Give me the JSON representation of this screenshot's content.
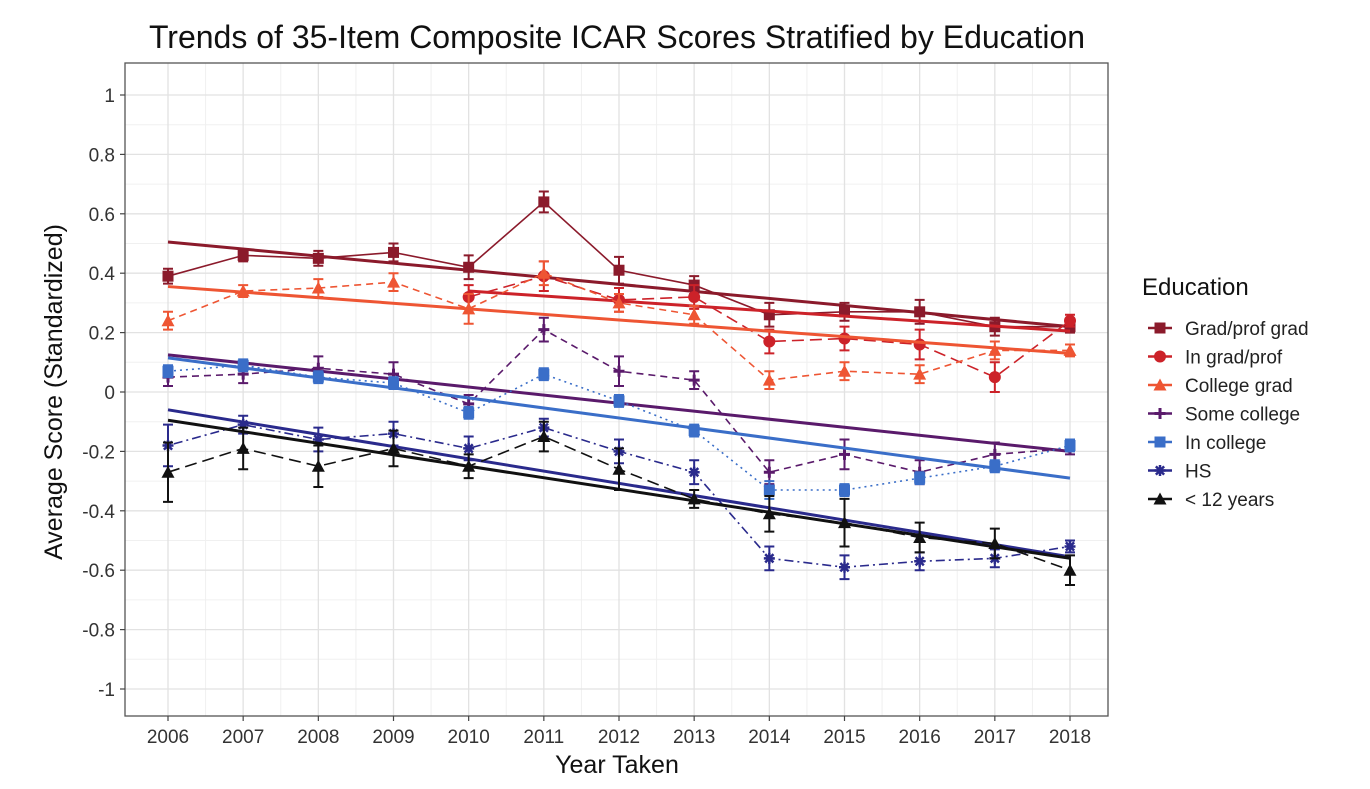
{
  "chart_data": {
    "type": "line",
    "title": "Trends of 35-Item Composite ICAR Scores Stratified by Education",
    "xlabel": "Year Taken",
    "ylabel": "Average Score (Standardized)",
    "ylim": [
      -1.1,
      1.1
    ],
    "y_ticks": [
      1,
      0.8,
      0.6,
      0.4,
      0.2,
      0,
      -0.2,
      -0.4,
      -0.6,
      -0.8,
      -1
    ],
    "y_tick_labels": [
      "1",
      "0.8",
      "0.6",
      "0.4",
      "0.2",
      "0",
      "-0.2",
      "-0.4",
      "-0.6",
      "-0.8",
      "-1"
    ],
    "x": [
      2006,
      2007,
      2008,
      2009,
      2010,
      2011,
      2012,
      2013,
      2014,
      2015,
      2016,
      2017,
      2018
    ],
    "x_tick_labels": [
      "2006",
      "2007",
      "2008",
      "2009",
      "2010",
      "2011",
      "2012",
      "2013",
      "2014",
      "2015",
      "2016",
      "2017",
      "2018"
    ],
    "grid": true,
    "legend_title": "Education",
    "legend_position": "right",
    "series": [
      {
        "name": "Grad/prof grad",
        "color": "#8b1a2b",
        "dash": "solid",
        "marker": "square",
        "values": [
          0.39,
          0.46,
          0.45,
          0.47,
          0.42,
          0.64,
          0.41,
          0.36,
          0.26,
          0.27,
          0.27,
          0.22,
          0.22
        ],
        "errors": [
          0.025,
          0.02,
          0.025,
          0.03,
          0.04,
          0.035,
          0.045,
          0.03,
          0.04,
          0.03,
          0.04,
          0.03,
          0.02
        ],
        "trend": [
          0.505,
          0.22
        ]
      },
      {
        "name": "In grad/prof",
        "color": "#cc2229",
        "dash": "longdash",
        "marker": "circle",
        "values": [
          null,
          null,
          null,
          null,
          0.32,
          0.39,
          0.31,
          0.32,
          0.17,
          0.18,
          0.16,
          0.05,
          0.24
        ],
        "errors": [
          null,
          null,
          null,
          null,
          0.04,
          0.05,
          0.04,
          0.04,
          0.04,
          0.04,
          0.05,
          0.05,
          0.02
        ],
        "trend": [
          0.34,
          0.205
        ]
      },
      {
        "name": "College grad",
        "color": "#ee5533",
        "dash": "dashed",
        "marker": "triangle",
        "values": [
          0.24,
          0.34,
          0.35,
          0.37,
          0.28,
          0.4,
          0.3,
          0.26,
          0.04,
          0.07,
          0.06,
          0.14,
          0.14
        ],
        "errors": [
          0.03,
          0.02,
          0.03,
          0.03,
          0.05,
          0.04,
          0.03,
          0.03,
          0.03,
          0.03,
          0.03,
          0.03,
          0.02
        ],
        "trend": [
          0.355,
          0.13
        ]
      },
      {
        "name": "Some college",
        "color": "#5a1a6b",
        "dash": "dashed",
        "marker": "plus",
        "values": [
          0.05,
          0.06,
          0.08,
          0.06,
          -0.04,
          0.21,
          0.07,
          0.04,
          -0.27,
          -0.21,
          -0.27,
          -0.21,
          -0.19
        ],
        "errors": [
          0.03,
          0.03,
          0.04,
          0.04,
          0.03,
          0.04,
          0.05,
          0.03,
          0.04,
          0.05,
          0.04,
          0.04,
          0.02
        ],
        "trend": [
          0.125,
          -0.2
        ]
      },
      {
        "name": "In college",
        "color": "#3a6ec8",
        "dash": "dotted",
        "marker": "square",
        "values": [
          0.07,
          0.09,
          0.05,
          0.03,
          -0.07,
          0.06,
          -0.03,
          -0.13,
          -0.33,
          -0.33,
          -0.29,
          -0.25,
          -0.18
        ],
        "errors": [
          0.02,
          0.02,
          0.02,
          0.02,
          0.02,
          0.02,
          0.02,
          0.02,
          0.03,
          0.02,
          0.02,
          0.02,
          0.02
        ],
        "trend": [
          0.115,
          -0.29
        ]
      },
      {
        "name": "HS",
        "color": "#2a2a8c",
        "dash": "dotdash",
        "marker": "star",
        "values": [
          -0.18,
          -0.11,
          -0.16,
          -0.14,
          -0.19,
          -0.12,
          -0.2,
          -0.27,
          -0.56,
          -0.59,
          -0.57,
          -0.56,
          -0.52
        ],
        "errors": [
          0.07,
          0.03,
          0.04,
          0.04,
          0.04,
          0.03,
          0.04,
          0.04,
          0.04,
          0.04,
          0.03,
          0.03,
          0.02
        ],
        "trend": [
          -0.06,
          -0.555
        ]
      },
      {
        "name": "< 12 years",
        "color": "#111111",
        "dash": "longdash",
        "marker": "triangle",
        "values": [
          -0.27,
          -0.19,
          -0.25,
          -0.19,
          -0.25,
          -0.15,
          -0.26,
          -0.36,
          -0.41,
          -0.44,
          -0.49,
          -0.51,
          -0.6
        ],
        "errors": [
          0.1,
          0.07,
          0.07,
          0.06,
          0.04,
          0.05,
          0.07,
          0.03,
          0.06,
          0.08,
          0.05,
          0.05,
          0.05
        ],
        "trend": [
          -0.095,
          -0.56
        ]
      }
    ]
  }
}
